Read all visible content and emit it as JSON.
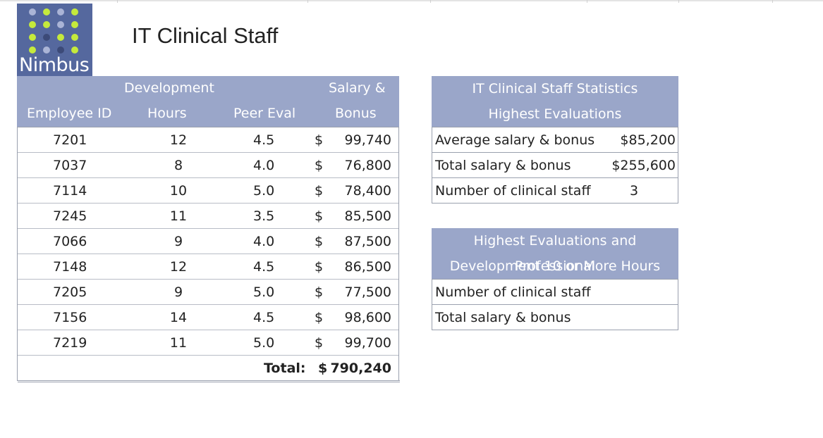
{
  "logo": {
    "text": "Nimbus"
  },
  "page_title": "IT Clinical Staff",
  "main_table": {
    "headers": {
      "employee_id": "Employee ID",
      "dev_line1": "Development",
      "dev_line2": "Hours",
      "peer_eval": "Peer Eval",
      "salary_line1": "Salary &",
      "salary_line2": "Bonus"
    },
    "rows": [
      {
        "id": "7201",
        "hours": "12",
        "peer": "4.5",
        "currency": "$",
        "salary": "99,740"
      },
      {
        "id": "7037",
        "hours": "8",
        "peer": "4.0",
        "currency": "$",
        "salary": "76,800"
      },
      {
        "id": "7114",
        "hours": "10",
        "peer": "5.0",
        "currency": "$",
        "salary": "78,400"
      },
      {
        "id": "7245",
        "hours": "11",
        "peer": "3.5",
        "currency": "$",
        "salary": "85,500"
      },
      {
        "id": "7066",
        "hours": "9",
        "peer": "4.0",
        "currency": "$",
        "salary": "87,500"
      },
      {
        "id": "7148",
        "hours": "12",
        "peer": "4.5",
        "currency": "$",
        "salary": "86,500"
      },
      {
        "id": "7205",
        "hours": "9",
        "peer": "5.0",
        "currency": "$",
        "salary": "77,500"
      },
      {
        "id": "7156",
        "hours": "14",
        "peer": "4.5",
        "currency": "$",
        "salary": "98,600"
      },
      {
        "id": "7219",
        "hours": "11",
        "peer": "5.0",
        "currency": "$",
        "salary": "99,700"
      }
    ],
    "total": {
      "label": "Total:",
      "currency": "$",
      "value": "790,240"
    }
  },
  "stats_panel": {
    "title_line1": "IT Clinical Staff Statistics",
    "title_line2": "Highest Evaluations",
    "rows": [
      {
        "label": "Average salary & bonus",
        "value": "$85,200"
      },
      {
        "label": "Total salary & bonus",
        "value": "$255,600"
      },
      {
        "label": "Number of clinical staff",
        "value": "3"
      }
    ]
  },
  "dev_panel": {
    "title_line1": "Highest Evaluations and Professional",
    "title_line2": "Development 10 or More Hours",
    "rows": [
      {
        "label": "Number of clinical staff",
        "value": ""
      },
      {
        "label": "Total salary & bonus",
        "value": ""
      }
    ]
  },
  "colors": {
    "header_bg": "#9aa6c9",
    "logo_bg": "#55689e",
    "logo_dot_green": "#c5ea3c",
    "logo_dot_light": "#aab4d6",
    "logo_dot_dark": "#3c4a78"
  }
}
